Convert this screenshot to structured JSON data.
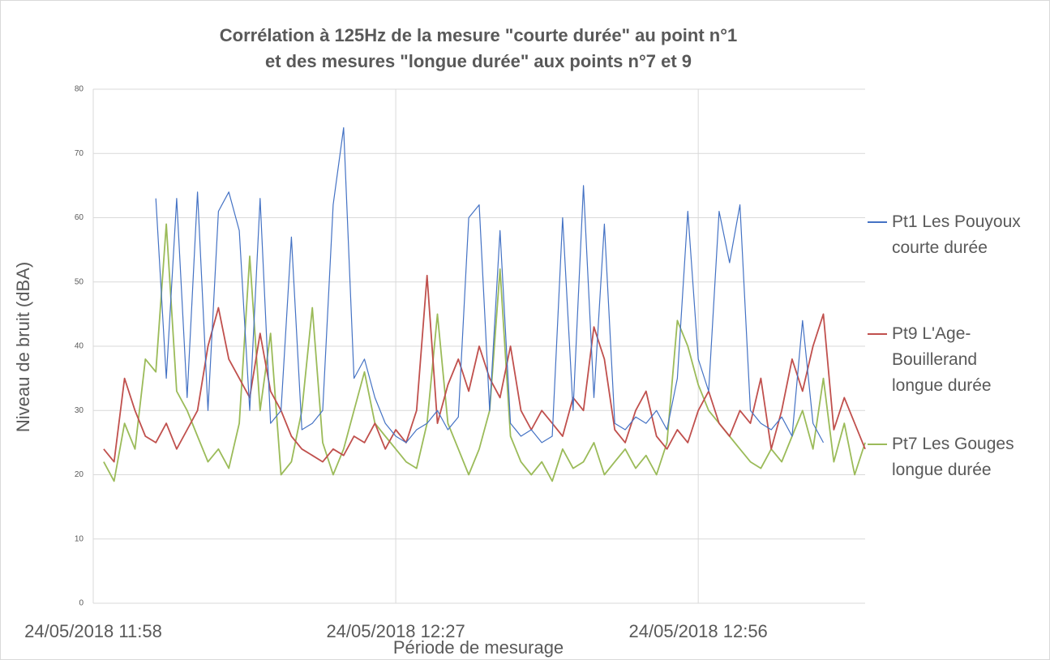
{
  "chart_data": {
    "type": "line",
    "title": [
      "Corrélation à 125Hz de la mesure \"courte durée\" au point n°1",
      "et des mesures \"longue durée\" aux points n°7 et 9"
    ],
    "xlabel": "Période de mesurage",
    "ylabel": "Niveau de bruit (dBA)",
    "xlim": [
      "24/05/2018 11:58",
      "24/05/2018 13:12"
    ],
    "xticks": [
      "24/05/2018 11:58",
      "24/05/2018 12:27",
      "24/05/2018 12:56"
    ],
    "ylim": [
      0,
      80
    ],
    "yticks": [
      0,
      10,
      20,
      30,
      40,
      50,
      60,
      70,
      80
    ],
    "grid": true,
    "legend": "right",
    "x": [
      "24/05/2018 11:59",
      "24/05/2018 12:00",
      "24/05/2018 12:01",
      "24/05/2018 12:02",
      "24/05/2018 12:03",
      "24/05/2018 12:04",
      "24/05/2018 12:05",
      "24/05/2018 12:06",
      "24/05/2018 12:07",
      "24/05/2018 12:08",
      "24/05/2018 12:09",
      "24/05/2018 12:10",
      "24/05/2018 12:11",
      "24/05/2018 12:12",
      "24/05/2018 12:13",
      "24/05/2018 12:14",
      "24/05/2018 12:15",
      "24/05/2018 12:16",
      "24/05/2018 12:17",
      "24/05/2018 12:18",
      "24/05/2018 12:19",
      "24/05/2018 12:20",
      "24/05/2018 12:21",
      "24/05/2018 12:22",
      "24/05/2018 12:23",
      "24/05/2018 12:24",
      "24/05/2018 12:25",
      "24/05/2018 12:26",
      "24/05/2018 12:27",
      "24/05/2018 12:28",
      "24/05/2018 12:29",
      "24/05/2018 12:30",
      "24/05/2018 12:31",
      "24/05/2018 12:32",
      "24/05/2018 12:33",
      "24/05/2018 12:34",
      "24/05/2018 12:35",
      "24/05/2018 12:36",
      "24/05/2018 12:37",
      "24/05/2018 12:38",
      "24/05/2018 12:39",
      "24/05/2018 12:40",
      "24/05/2018 12:41",
      "24/05/2018 12:42",
      "24/05/2018 12:43",
      "24/05/2018 12:44",
      "24/05/2018 12:45",
      "24/05/2018 12:46",
      "24/05/2018 12:47",
      "24/05/2018 12:48",
      "24/05/2018 12:49",
      "24/05/2018 12:50",
      "24/05/2018 12:51",
      "24/05/2018 12:52",
      "24/05/2018 12:53",
      "24/05/2018 12:54",
      "24/05/2018 12:55",
      "24/05/2018 12:56",
      "24/05/2018 12:57",
      "24/05/2018 12:58",
      "24/05/2018 12:59",
      "24/05/2018 13:00",
      "24/05/2018 13:01",
      "24/05/2018 13:02",
      "24/05/2018 13:03",
      "24/05/2018 13:04",
      "24/05/2018 13:05",
      "24/05/2018 13:06",
      "24/05/2018 13:07",
      "24/05/2018 13:08",
      "24/05/2018 13:09",
      "24/05/2018 13:10",
      "24/05/2018 13:11",
      "24/05/2018 13:12"
    ],
    "series": [
      {
        "name": "Pt1 Les Pouyoux courte durée",
        "color": "#4472c4",
        "values": [
          null,
          null,
          null,
          null,
          null,
          63,
          35,
          63,
          32,
          64,
          30,
          61,
          64,
          58,
          30,
          63,
          28,
          30,
          57,
          27,
          28,
          30,
          62,
          74,
          35,
          38,
          32,
          28,
          26,
          25,
          27,
          28,
          30,
          27,
          29,
          60,
          62,
          30,
          58,
          28,
          26,
          27,
          25,
          26,
          60,
          30,
          65,
          32,
          59,
          28,
          27,
          29,
          28,
          30,
          27,
          35,
          61,
          38,
          33,
          61,
          53,
          62,
          30,
          28,
          27,
          29,
          26,
          44,
          28,
          25,
          null,
          null,
          null,
          null
        ]
      },
      {
        "name": "Pt9 L'Age-Bouillerand longue durée",
        "color": "#c0504d",
        "values": [
          24,
          22,
          35,
          30,
          26,
          25,
          28,
          24,
          27,
          30,
          40,
          46,
          38,
          35,
          32,
          42,
          33,
          30,
          26,
          24,
          23,
          22,
          24,
          23,
          26,
          25,
          28,
          24,
          27,
          25,
          30,
          51,
          28,
          34,
          38,
          33,
          40,
          35,
          32,
          40,
          30,
          27,
          30,
          28,
          26,
          32,
          30,
          43,
          38,
          27,
          25,
          30,
          33,
          26,
          24,
          27,
          25,
          30,
          33,
          28,
          26,
          30,
          28,
          35,
          24,
          30,
          38,
          33,
          40,
          45,
          27,
          32,
          28,
          24
        ]
      },
      {
        "name": "Pt7 Les Gouges longue durée",
        "color": "#9bbb59",
        "values": [
          22,
          19,
          28,
          24,
          38,
          36,
          59,
          33,
          30,
          26,
          22,
          24,
          21,
          28,
          54,
          30,
          42,
          20,
          22,
          30,
          46,
          25,
          20,
          24,
          30,
          36,
          28,
          26,
          24,
          22,
          21,
          28,
          45,
          28,
          24,
          20,
          24,
          30,
          52,
          26,
          22,
          20,
          22,
          19,
          24,
          21,
          22,
          25,
          20,
          22,
          24,
          21,
          23,
          20,
          25,
          44,
          40,
          34,
          30,
          28,
          26,
          24,
          22,
          21,
          24,
          22,
          26,
          30,
          24,
          35,
          22,
          28,
          20,
          25
        ]
      }
    ]
  }
}
